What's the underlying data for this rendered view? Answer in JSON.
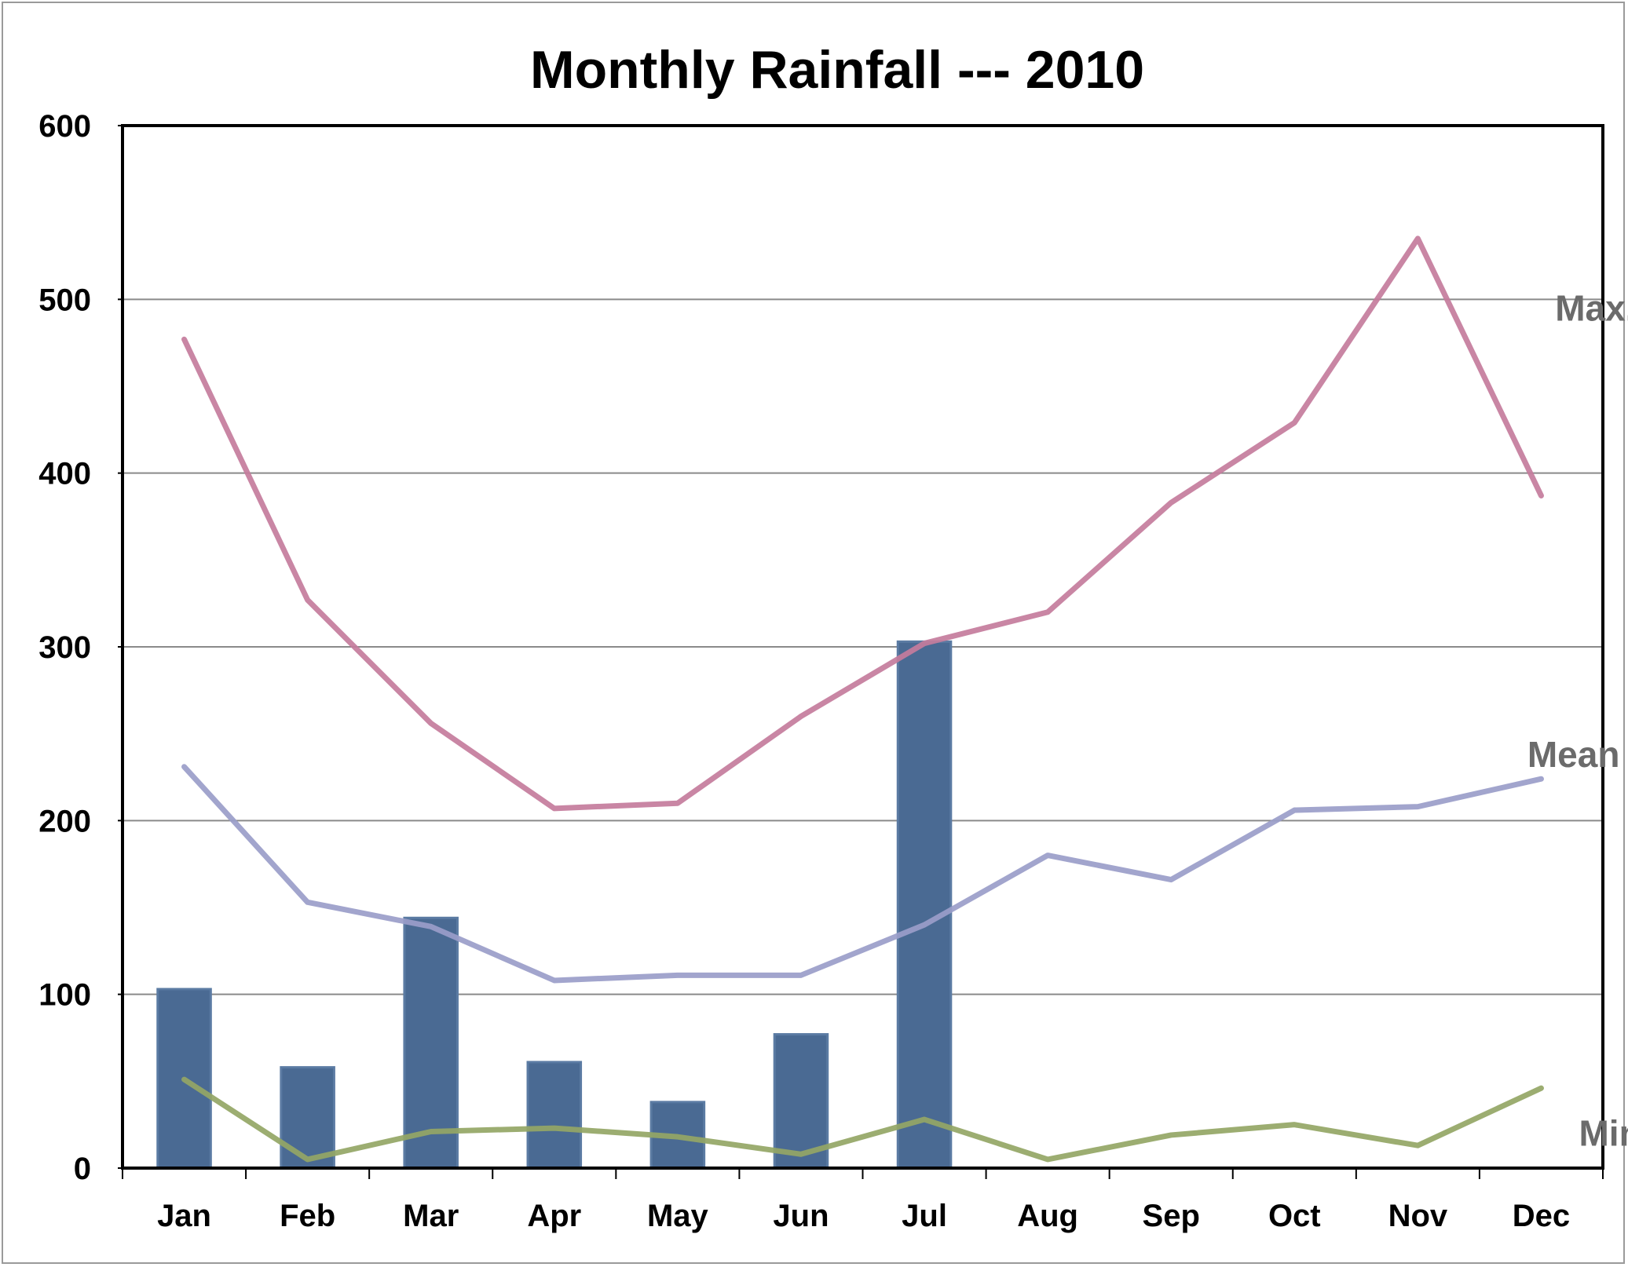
{
  "chart_data": {
    "type": "bar",
    "title": "Monthly Rainfall --- 2010",
    "xlabel": "",
    "ylabel": "",
    "ylim": [
      0,
      600
    ],
    "yticks": [
      0,
      100,
      200,
      300,
      400,
      500,
      600
    ],
    "grid": true,
    "categories": [
      "Jan",
      "Feb",
      "Mar",
      "Apr",
      "May",
      "Jun",
      "Jul",
      "Aug",
      "Sep",
      "Oct",
      "Nov",
      "Dec"
    ],
    "bars": {
      "color": "#4a6a93",
      "values": [
        103,
        58,
        144,
        61,
        38,
        77,
        303,
        null,
        null,
        null,
        null,
        null
      ]
    },
    "lines": [
      {
        "name": "Max.",
        "color": "#c47c9c",
        "values": [
          477,
          327,
          256,
          207,
          210,
          260,
          302,
          320,
          383,
          429,
          535,
          387
        ]
      },
      {
        "name": "Mean",
        "color": "#9a9dc9",
        "values": [
          231,
          153,
          139,
          108,
          111,
          111,
          140,
          180,
          166,
          206,
          208,
          224
        ]
      },
      {
        "name": "Min.",
        "color": "#94a665",
        "values": [
          51,
          5,
          21,
          23,
          18,
          8,
          28,
          5,
          19,
          25,
          13,
          46
        ]
      }
    ]
  }
}
